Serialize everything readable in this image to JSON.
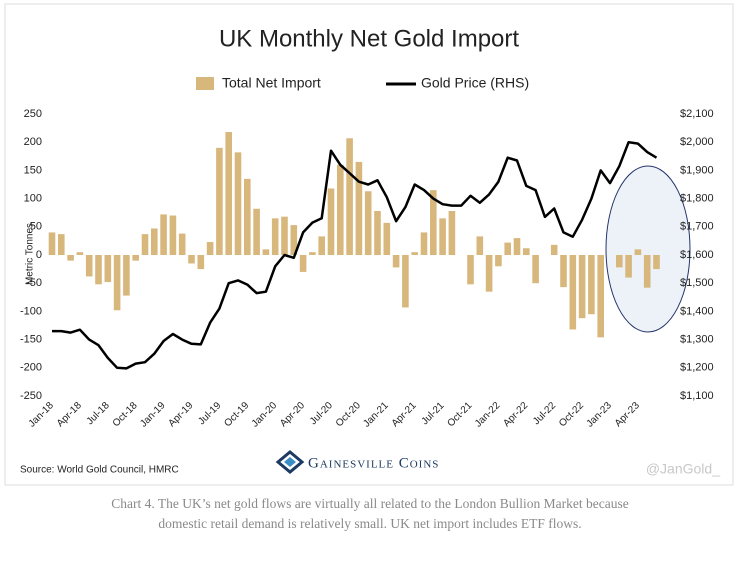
{
  "chart_data": {
    "type": "bar",
    "title": "UK Monthly Net Gold Import",
    "ylabel": "Metric Tonnes",
    "source": "Source: World Gold Council, HMRC",
    "logo": "Gainesville Coins",
    "watermark": "@JanGold_",
    "caption": "Chart 4. The UK’s net gold flows are virtually all related to the London Bullion Market because domestic retail demand is relatively small. UK net import includes ETF flows.",
    "categories": [
      "Jan-18",
      null,
      null,
      "Apr-18",
      null,
      null,
      "Jul-18",
      null,
      null,
      "Oct-18",
      null,
      null,
      "Jan-19",
      null,
      null,
      "Apr-19",
      null,
      null,
      "Jul-19",
      null,
      null,
      "Oct-19",
      null,
      null,
      "Jan-20",
      null,
      null,
      "Apr-20",
      null,
      null,
      "Jul-20",
      null,
      null,
      "Oct-20",
      null,
      null,
      "Jan-21",
      null,
      null,
      "Apr-21",
      null,
      null,
      "Jul-21",
      null,
      null,
      "Oct-21",
      null,
      null,
      "Jan-22",
      null,
      null,
      "Apr-22",
      null,
      null,
      "Jul-22",
      null,
      null,
      "Oct-22",
      null,
      null,
      "Jan-23",
      null,
      null,
      "Apr-23",
      null,
      null
    ],
    "series": [
      {
        "name": "Total Net Import",
        "color": "#d8b77d",
        "values": [
          40,
          37,
          -10,
          5,
          -38,
          -52,
          -48,
          -98,
          -72,
          -10,
          37,
          47,
          72,
          70,
          38,
          -15,
          -25,
          23,
          190,
          218,
          182,
          135,
          82,
          10,
          65,
          68,
          53,
          -30,
          5,
          33,
          118,
          160,
          207,
          165,
          113,
          78,
          57,
          -22,
          -93,
          5,
          40,
          115,
          65,
          78,
          0,
          -52,
          33,
          -65,
          -20,
          22,
          30,
          12,
          -50,
          0,
          18,
          -57,
          -132,
          -112,
          -105,
          -146,
          0,
          -22,
          -40,
          10,
          -58,
          -25
        ]
      },
      {
        "name": "Gold Price (RHS)",
        "color": "#000000",
        "axis": "y2",
        "values": [
          1330,
          1330,
          1325,
          1335,
          1300,
          1280,
          1235,
          1200,
          1198,
          1215,
          1220,
          1250,
          1295,
          1320,
          1300,
          1285,
          1283,
          1360,
          1410,
          1500,
          1510,
          1495,
          1465,
          1470,
          1560,
          1600,
          1590,
          1680,
          1715,
          1730,
          1970,
          1920,
          1890,
          1860,
          1850,
          1865,
          1805,
          1720,
          1770,
          1850,
          1830,
          1800,
          1780,
          1775,
          1775,
          1810,
          1785,
          1815,
          1860,
          1945,
          1935,
          1845,
          1830,
          1735,
          1765,
          1680,
          1665,
          1725,
          1800,
          1900,
          1855,
          1915,
          2000,
          1995,
          1965,
          1945
        ]
      }
    ],
    "ylim": [
      -250,
      250
    ],
    "yticks": [
      -250,
      -200,
      -150,
      -100,
      -50,
      0,
      50,
      100,
      150,
      200,
      250
    ],
    "y2lim": [
      1100,
      2100
    ],
    "y2ticks": [
      {
        "value": 1100,
        "label": "$1,100"
      },
      {
        "value": 1200,
        "label": "$1,200"
      },
      {
        "value": 1300,
        "label": "$1,300"
      },
      {
        "value": 1400,
        "label": "$1,400"
      },
      {
        "value": 1500,
        "label": "$1,500"
      },
      {
        "value": 1600,
        "label": "$1,600"
      },
      {
        "value": 1700,
        "label": "$1,700"
      },
      {
        "value": 1800,
        "label": "$1,800"
      },
      {
        "value": 1900,
        "label": "$1,900"
      },
      {
        "value": 2000,
        "label": "$2,000"
      },
      {
        "value": 2100,
        "label": "$2,100"
      }
    ],
    "grid": false
  }
}
